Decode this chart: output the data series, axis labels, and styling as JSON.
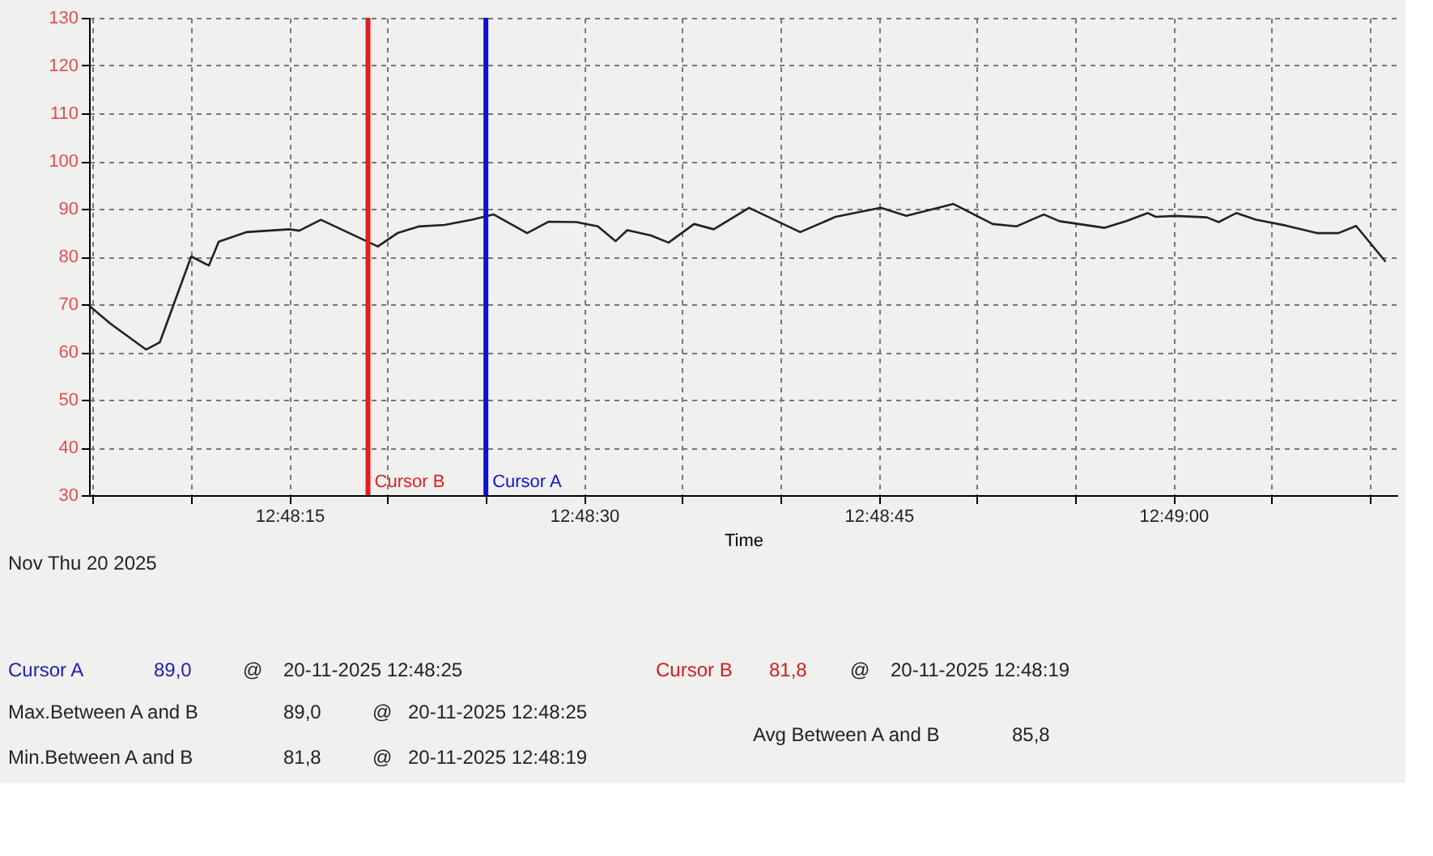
{
  "chart_data": {
    "type": "line",
    "xlabel": "Time",
    "ylim": [
      30,
      130
    ],
    "yticks": [
      30,
      40,
      50,
      60,
      70,
      80,
      90,
      100,
      110,
      120,
      130
    ],
    "xlim": [
      "2025-11-20T12:48:04.8",
      "2025-11-20T12:49:11.4"
    ],
    "xticks": [
      {
        "value": "2025-11-20T12:48:05",
        "label": null
      },
      {
        "value": "2025-11-20T12:48:10",
        "label": null
      },
      {
        "value": "2025-11-20T12:48:15",
        "label": "12:48:15"
      },
      {
        "value": "2025-11-20T12:48:20",
        "label": null
      },
      {
        "value": "2025-11-20T12:48:25",
        "label": null
      },
      {
        "value": "2025-11-20T12:48:30",
        "label": "12:48:30"
      },
      {
        "value": "2025-11-20T12:48:35",
        "label": null
      },
      {
        "value": "2025-11-20T12:48:40",
        "label": null
      },
      {
        "value": "2025-11-20T12:48:45",
        "label": "12:48:45"
      },
      {
        "value": "2025-11-20T12:48:50",
        "label": null
      },
      {
        "value": "2025-11-20T12:48:55",
        "label": null
      },
      {
        "value": "2025-11-20T12:49:00",
        "label": "12:49:00"
      },
      {
        "value": "2025-11-20T12:49:05",
        "label": null
      },
      {
        "value": "2025-11-20T12:49:10",
        "label": null
      }
    ],
    "grid": true,
    "line_style": "solid",
    "marker": "none",
    "x": [
      "2025-11-20T12:48:04.8",
      "2025-11-20T12:48:05.9",
      "2025-11-20T12:48:07.7",
      "2025-11-20T12:48:08.4",
      "2025-11-20T12:48:10.0",
      "2025-11-20T12:48:10.9",
      "2025-11-20T12:48:11.4",
      "2025-11-20T12:48:12.8",
      "2025-11-20T12:48:15.0",
      "2025-11-20T12:48:15.5",
      "2025-11-20T12:48:16.6",
      "2025-11-20T12:48:19.5",
      "2025-11-20T12:48:20.5",
      "2025-11-20T12:48:21.6",
      "2025-11-20T12:48:22.9",
      "2025-11-20T12:48:24.3",
      "2025-11-20T12:48:25.4",
      "2025-11-20T12:48:27.1",
      "2025-11-20T12:48:28.2",
      "2025-11-20T12:48:29.6",
      "2025-11-20T12:48:30.7",
      "2025-11-20T12:48:31.6",
      "2025-11-20T12:48:32.2",
      "2025-11-20T12:48:33.4",
      "2025-11-20T12:48:34.3",
      "2025-11-20T12:48:35.6",
      "2025-11-20T12:48:36.6",
      "2025-11-20T12:48:38.4",
      "2025-11-20T12:48:41.0",
      "2025-11-20T12:48:42.8",
      "2025-11-20T12:48:45.1",
      "2025-11-20T12:48:46.4",
      "2025-11-20T12:48:48.8",
      "2025-11-20T12:48:50.8",
      "2025-11-20T12:48:52.0",
      "2025-11-20T12:48:53.4",
      "2025-11-20T12:48:54.2",
      "2025-11-20T12:48:56.5",
      "2025-11-20T12:48:57.6",
      "2025-11-20T12:48:58.7",
      "2025-11-20T12:48:59.1",
      "2025-11-20T12:49:00.1",
      "2025-11-20T12:49:01.7",
      "2025-11-20T12:49:02.3",
      "2025-11-20T12:49:03.2",
      "2025-11-20T12:49:04.2",
      "2025-11-20T12:49:05.7",
      "2025-11-20T12:49:07.3",
      "2025-11-20T12:49:08.4",
      "2025-11-20T12:49:09.3",
      "2025-11-20T12:49:10.8"
    ],
    "series": [
      {
        "color": "#222222",
        "values": [
          69.7,
          65.9,
          60.5,
          62,
          80,
          78.1,
          83.1,
          85.1,
          85.7,
          85.4,
          87.7,
          82.1,
          84.9,
          86.3,
          86.6,
          87.7,
          88.8,
          84.9,
          87.3,
          87.2,
          86.3,
          83.2,
          85.5,
          84.4,
          82.9,
          86.8,
          85.7,
          90.2,
          85.1,
          88.3,
          90.2,
          88.5,
          91.0,
          86.8,
          86.3,
          88.8,
          87.4,
          86.0,
          87.4,
          89.1,
          88.3,
          88.5,
          88.2,
          87.2,
          89.1,
          87.7,
          86.5,
          84.9,
          84.9,
          86.4,
          78.9
        ]
      }
    ],
    "ref_lines": [
      {
        "axis": "x",
        "value": "2025-11-20T12:48:19",
        "label": "Cursor B",
        "color": "#e02020"
      },
      {
        "axis": "x",
        "value": "2025-11-20T12:48:25",
        "label": "Cursor A",
        "color": "#1010d0"
      }
    ],
    "annotations": [
      "Nov Thu 20 2025",
      "Cursor A",
      "89,0",
      "@",
      "20-11-2025 12:48:25",
      "Cursor B",
      "81,8",
      "@",
      "20-11-2025 12:48:19",
      "Max.Between A and B",
      "89,0",
      "@",
      "20-11-2025 12:48:25",
      "Min.Between A and B",
      "81,8",
      "@",
      "20-11-2025 12:48:19",
      "Avg Between A and B",
      "85,8"
    ]
  }
}
